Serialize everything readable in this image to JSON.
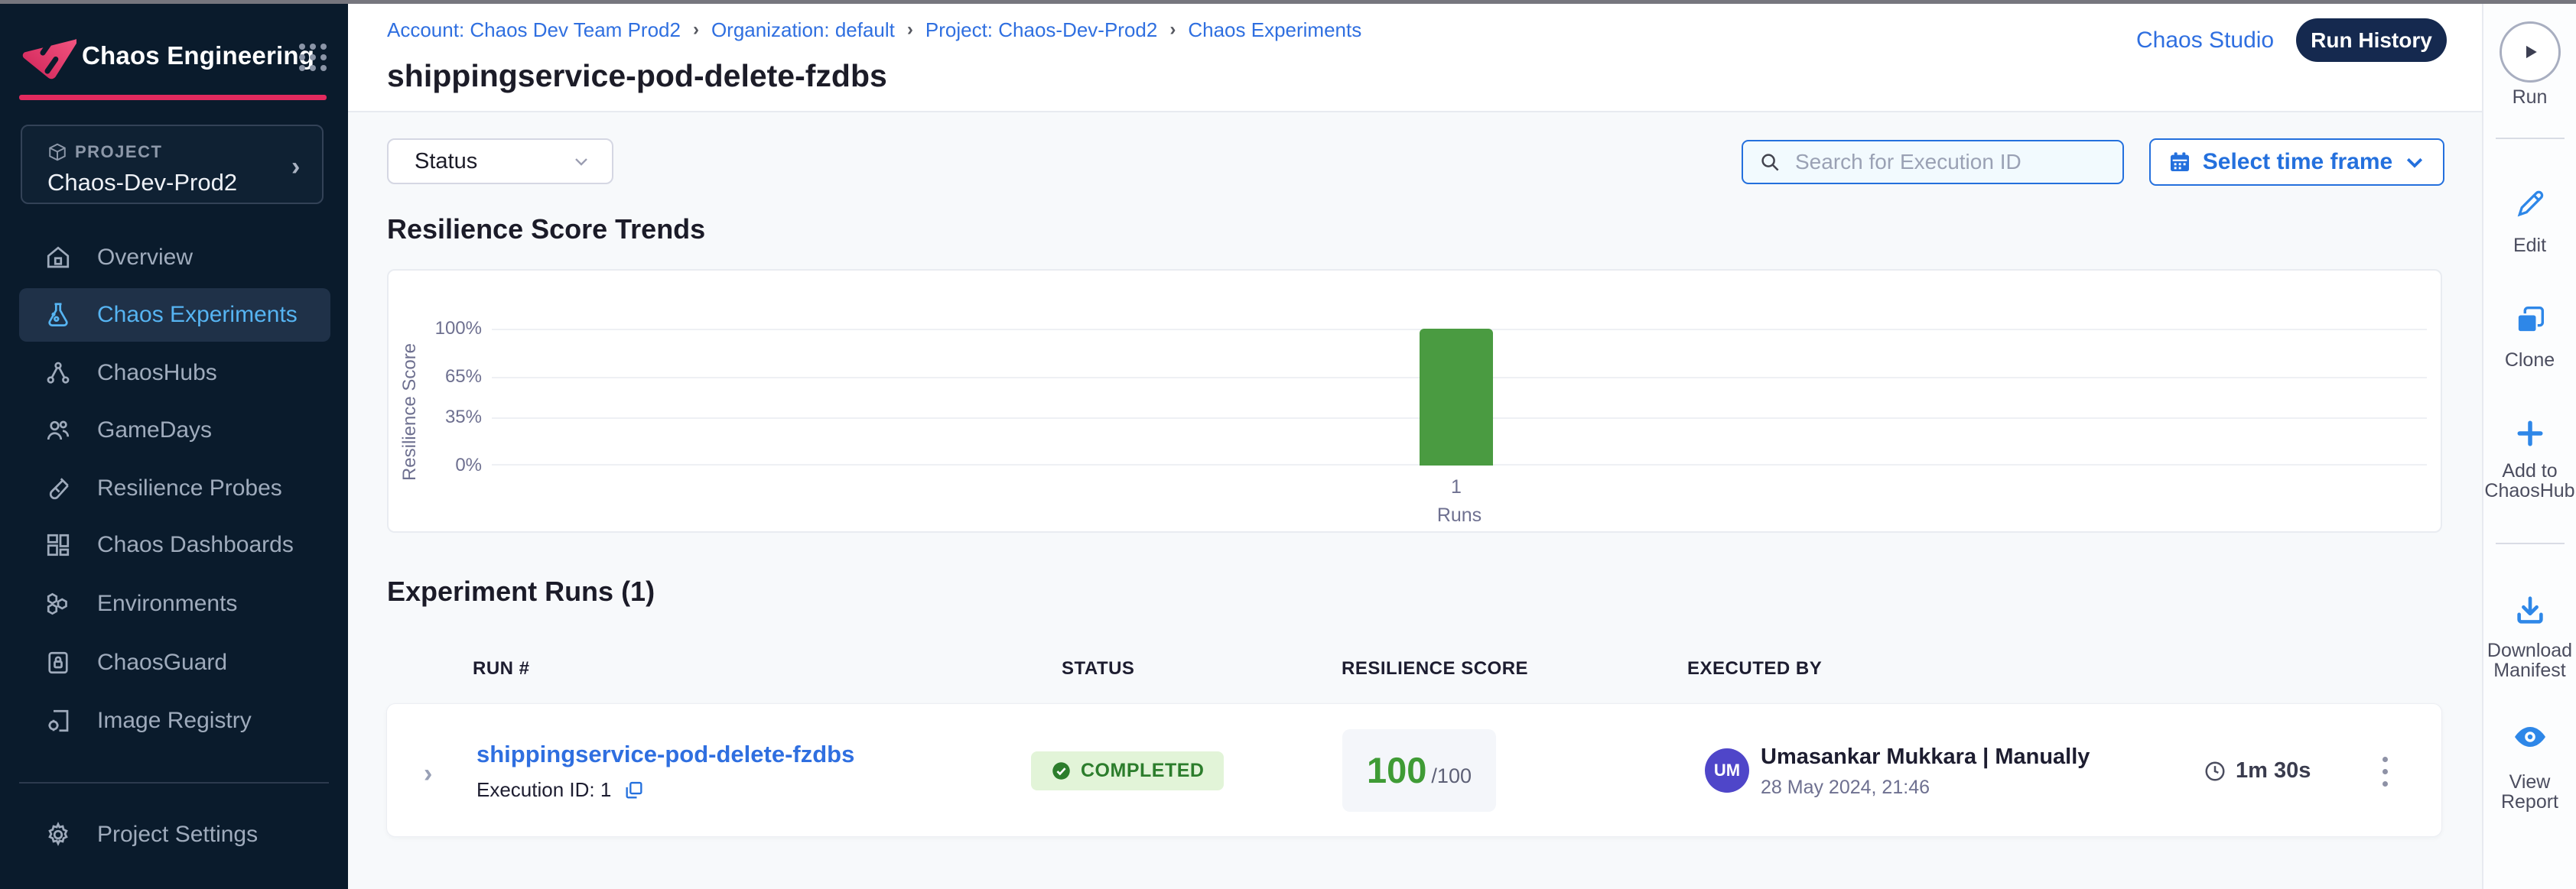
{
  "app": {
    "product": "Chaos Engineering"
  },
  "header": {
    "breadcrumb": [
      "Account: Chaos Dev Team Prod2",
      "Organization: default",
      "Project: Chaos-Dev-Prod2",
      "Chaos Experiments"
    ],
    "separator": "›",
    "title": "shippingservice-pod-delete-fzdbs",
    "chaos_studio_link": "Chaos Studio",
    "run_history_button": "Run History"
  },
  "sidebar": {
    "project": {
      "label": "PROJECT",
      "name": "Chaos-Dev-Prod2"
    },
    "items": [
      {
        "label": "Overview",
        "icon": "home-icon",
        "active": false
      },
      {
        "label": "Chaos Experiments",
        "icon": "flask-icon",
        "active": true
      },
      {
        "label": "ChaosHubs",
        "icon": "hub-icon",
        "active": false
      },
      {
        "label": "GameDays",
        "icon": "people-icon",
        "active": false
      },
      {
        "label": "Resilience Probes",
        "icon": "test-tube-icon",
        "active": false
      },
      {
        "label": "Chaos Dashboards",
        "icon": "dashboard-icon",
        "active": false
      },
      {
        "label": "Environments",
        "icon": "hexagons-icon",
        "active": false
      },
      {
        "label": "ChaosGuard",
        "icon": "lock-card-icon",
        "active": false
      },
      {
        "label": "Image Registry",
        "icon": "image-registry-icon",
        "active": false
      }
    ],
    "footer_item": {
      "label": "Project Settings",
      "icon": "gear-icon"
    }
  },
  "filters": {
    "status_dropdown": {
      "label": "Status"
    },
    "search": {
      "placeholder": "Search for Execution ID"
    },
    "time_frame_button": {
      "label": "Select time frame"
    }
  },
  "sections": {
    "trends_title": "Resilience Score Trends",
    "runs_title": "Experiment Runs (1)"
  },
  "chart_data": {
    "type": "bar",
    "title": "Resilience Score Trends",
    "categories": [
      "1"
    ],
    "values": [
      100
    ],
    "series": [
      {
        "name": "Resilience Score",
        "values": [
          100
        ]
      }
    ],
    "xlabel": "Runs",
    "ylabel": "Resilience Score",
    "ylim": [
      0,
      100
    ],
    "ytick_labels": [
      "100%",
      "65%",
      "35%",
      "0%"
    ],
    "ytick_values": [
      100,
      65,
      35,
      0
    ],
    "bar_color": "#4a9b41",
    "grid": true,
    "legend": false
  },
  "runs_table": {
    "columns": [
      "RUN #",
      "STATUS",
      "RESILIENCE SCORE",
      "EXECUTED BY"
    ],
    "rows": [
      {
        "run_name": "shippingservice-pod-delete-fzdbs",
        "execution_id": "Execution ID: 1",
        "status": "COMPLETED",
        "score": "100",
        "score_suffix": "/100",
        "avatar_initials": "UM",
        "executed_by": "Umasankar Mukkara | Manually",
        "executed_on": "28 May 2024, 21:46",
        "duration": "1m 30s"
      }
    ]
  },
  "right_rail": {
    "run_label": "Run",
    "actions": [
      {
        "label": "Edit",
        "icon": "pencil-icon"
      },
      {
        "label": "Clone",
        "icon": "clone-icon"
      },
      {
        "label": "Add to ChaosHub",
        "icon": "plus-icon"
      },
      {
        "label": "Download Manifest",
        "icon": "download-icon"
      },
      {
        "label": "View Report",
        "icon": "eye-icon"
      }
    ]
  },
  "colors": {
    "accent_blue": "#2470dd",
    "link_blue": "#2f6fe0",
    "nav_active_blue": "#56b4f2",
    "sidebar_bg": "#0a1b2c",
    "brand_pink": "#e22a5e",
    "bar_green": "#4a9b41",
    "success_green": "#2c7d2c",
    "badge_bg": "#e2f4d8",
    "navy_button": "#15294f",
    "avatar_purple": "#4f46c9"
  }
}
